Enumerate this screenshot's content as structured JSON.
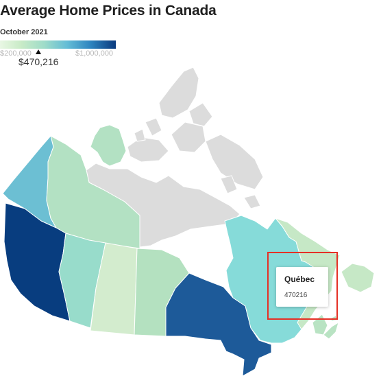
{
  "title": "Average Home Prices in Canada",
  "subtitle": "October 2021",
  "legend": {
    "min_label": "$200,000",
    "max_label": "$1,000,000",
    "min_value": 200000,
    "max_value": 1000000,
    "current_label": "$470,216",
    "current_value": 470216
  },
  "colors": {
    "no_data": "#dcdcdc",
    "highlight": "#e53025",
    "scale": [
      "#e9f7e4",
      "#c9ebc7",
      "#9fdcc9",
      "#64bdd6",
      "#2e85c0",
      "#0a3a7e"
    ]
  },
  "regions": [
    {
      "id": "british-columbia",
      "color": "#083d7f"
    },
    {
      "id": "alberta",
      "color": "#98dccb"
    },
    {
      "id": "saskatchewan",
      "color": "#d3ecce"
    },
    {
      "id": "manitoba",
      "color": "#b4e1c0"
    },
    {
      "id": "ontario",
      "color": "#1d5a99"
    },
    {
      "id": "quebec",
      "color": "#86dbd9"
    },
    {
      "id": "newfoundland-and-labrador",
      "color": "#c6e8c6"
    },
    {
      "id": "new-brunswick",
      "color": "#b9e3c3"
    },
    {
      "id": "nova-scotia",
      "color": "#b9e3c3"
    },
    {
      "id": "prince-edward-island",
      "color": "#b9e3c3"
    },
    {
      "id": "yukon",
      "color": "#6cbfd3"
    },
    {
      "id": "northwest-territories",
      "color": "#b3e1c3"
    },
    {
      "id": "nunavut",
      "color": "#dcdcdc"
    }
  ],
  "tooltip": {
    "name": "Québec",
    "value": "470216"
  }
}
